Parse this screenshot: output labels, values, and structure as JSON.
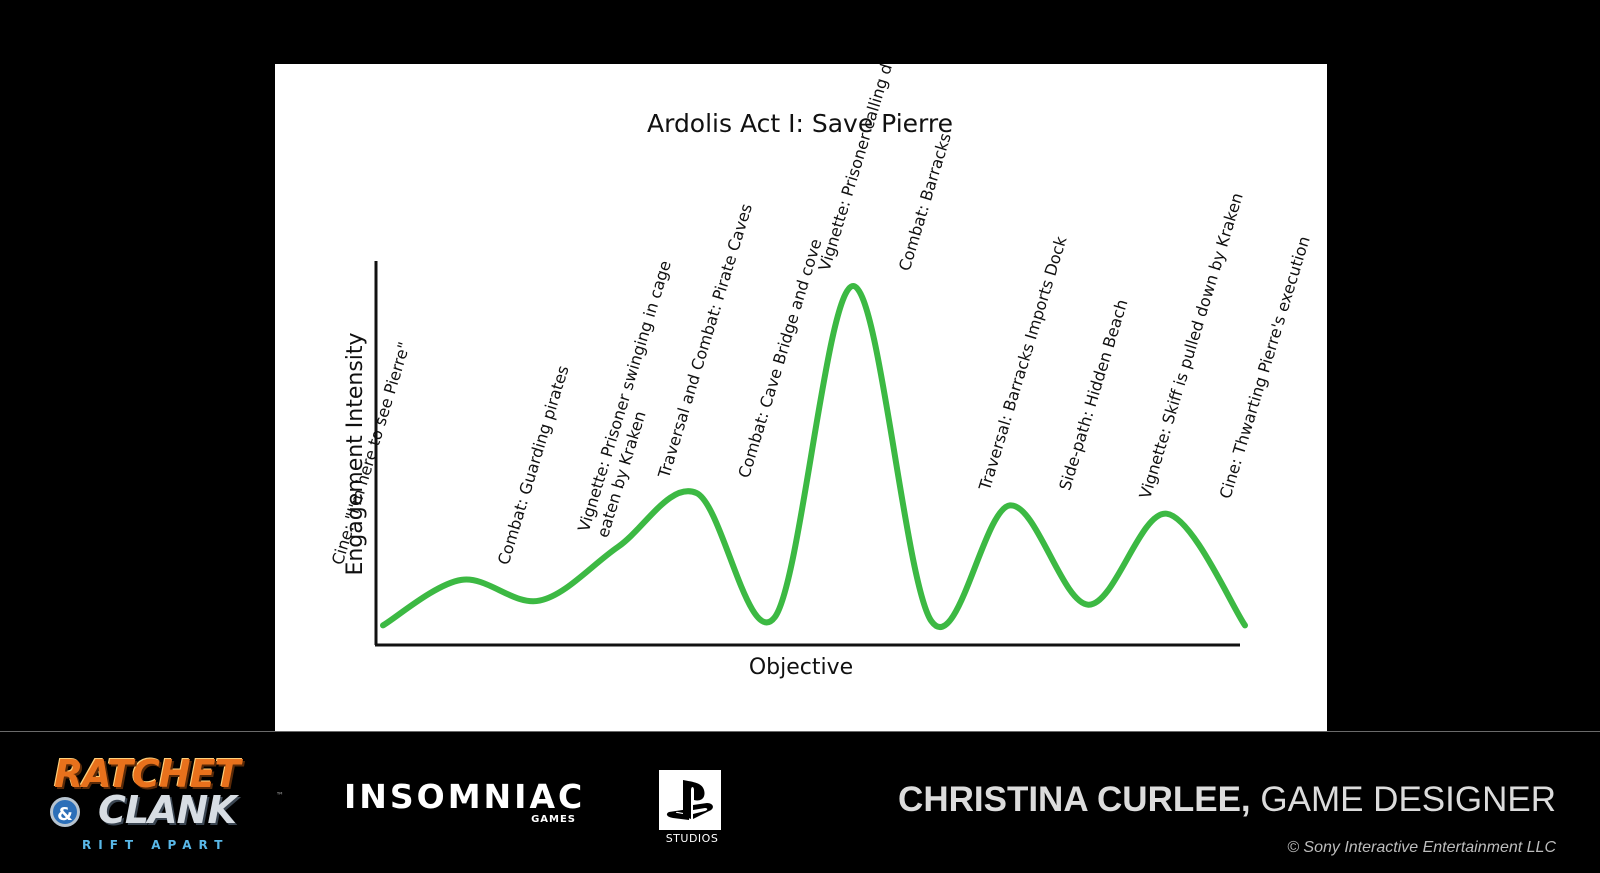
{
  "chart_data": {
    "type": "line",
    "title": "Ardolis Act I: Save Pierre",
    "xlabel": "Objective",
    "ylabel": "Engagement Intensity",
    "ylim": [
      0,
      100
    ],
    "grid": false,
    "line_color": "#3cb943",
    "points": [
      {
        "x": 1,
        "y": 4
      },
      {
        "x": 2,
        "y": 15
      },
      {
        "x": 3,
        "y": 10
      },
      {
        "x": 4,
        "y": 23
      },
      {
        "x": 5,
        "y": 36
      },
      {
        "x": 6,
        "y": 6
      },
      {
        "x": 7,
        "y": 86
      },
      {
        "x": 8,
        "y": 5
      },
      {
        "x": 9,
        "y": 33
      },
      {
        "x": 10,
        "y": 9
      },
      {
        "x": 11,
        "y": 31
      },
      {
        "x": 12,
        "y": 4
      }
    ],
    "annotations": [
      {
        "label": "Cine: \"I'm here to see Pierre\""
      },
      {
        "label": "Combat: Guarding pirates"
      },
      {
        "label": "Vignette: Prisoner swinging in cage",
        "line2": "eaten by Kraken"
      },
      {
        "label": "Traversal and Combat: Pirate Caves"
      },
      {
        "label": "Combat: Cave Bridge and cove"
      },
      {
        "label": "Vignette: Prisoner calling dog over"
      },
      {
        "label": "Combat: Barracks"
      },
      {
        "label": "Traversal: Barracks Imports Dock"
      },
      {
        "label": "Side-path: Hidden Beach"
      },
      {
        "label": "Vignette: Skiff is pulled down by Kraken"
      },
      {
        "label": "Cine: Thwarting Pierre's execution"
      }
    ]
  },
  "footer": {
    "game_logo": {
      "line1": "RATCHET",
      "amp": "&",
      "line2": "CLANK",
      "tm": "™",
      "subtitle": "RIFT APART"
    },
    "studio_logo": {
      "name": "INSOMNIAC",
      "sub": "GAMES"
    },
    "publisher_logo": {
      "name": "STUDIOS"
    },
    "credit_name": "CHRISTINA CURLEE,",
    "credit_role": "GAME DESIGNER",
    "copyright": "© Sony Interactive Entertainment LLC"
  }
}
